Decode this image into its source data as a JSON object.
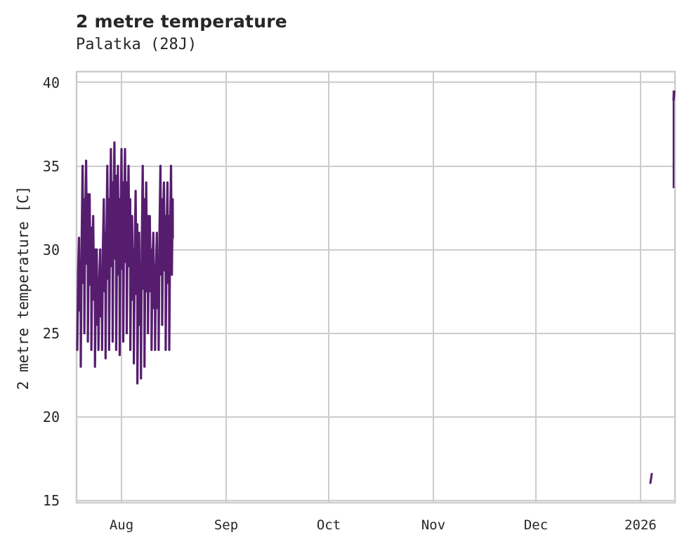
{
  "chart": {
    "title": "2 metre temperature",
    "subtitle": "Palatka (28J)",
    "ylabel": "2 metre temperature [C]",
    "yticks": [
      "40",
      "35",
      "30",
      "25",
      "20",
      "15"
    ],
    "xticks": [
      "Aug",
      "Sep",
      "Oct",
      "Nov",
      "Dec",
      "2026"
    ]
  },
  "colors": {
    "line": "#561d6f",
    "grid": "#cccccc",
    "text": "#262626",
    "background": "#ffffff"
  },
  "chart_data": {
    "type": "line",
    "title": "2 metre temperature",
    "subtitle": "Palatka (28J)",
    "xlabel": "",
    "ylabel": "2 metre temperature [C]",
    "ylim": [
      14.9,
      40.7
    ],
    "xlim": [
      "2025-07-19",
      "2026-01-16"
    ],
    "yticks": [
      15,
      20,
      25,
      30,
      35,
      40
    ],
    "xticks": [
      "Aug",
      "Sep",
      "Oct",
      "Nov",
      "Dec",
      "2026"
    ],
    "grid": true,
    "legend": null,
    "series": [
      {
        "name": "2 metre temperature",
        "color": "#561d6f",
        "segments": [
          {
            "note": "dense hourly-like oscillation, approx Jul 19 - Aug 16 2025",
            "x_start": "2025-07-19",
            "x_end": "2025-08-16",
            "y_min": 22.0,
            "y_max": 36.4,
            "daily_highs_approx": [
              30.7,
              35.0,
              35.3,
              33.3,
              32.0,
              30.0,
              30.0,
              33.0,
              35.0,
              36.0,
              36.4,
              35.0,
              36.0,
              36.0,
              35.0,
              32.0,
              33.5,
              31.0,
              35.0,
              34.0,
              32.0,
              31.0,
              31.0,
              35.0,
              34.0,
              34.0,
              35.0
            ],
            "daily_lows_approx": [
              24.0,
              23.0,
              25.0,
              24.5,
              24.0,
              23.0,
              24.0,
              24.0,
              23.5,
              24.0,
              24.5,
              24.0,
              23.7,
              24.5,
              25.0,
              24.0,
              23.2,
              22.0,
              22.3,
              23.0,
              25.0,
              24.0,
              24.0,
              24.0,
              25.5,
              24.0,
              24.0
            ]
          },
          {
            "note": "short segment just after Jan 1 2026",
            "x_start": "2026-01-01",
            "x_end": "2026-01-02",
            "y_min": 16.0,
            "y_max": 16.6
          },
          {
            "note": "vertical segment at right edge",
            "x_start": "2026-01-15",
            "x_end": "2026-01-15",
            "y_min": 33.7,
            "y_max": 39.5
          }
        ]
      }
    ]
  }
}
